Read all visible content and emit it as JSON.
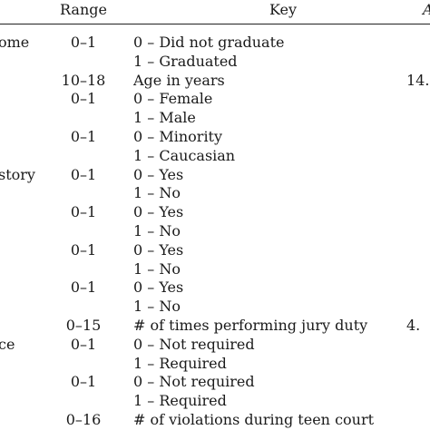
{
  "header": {
    "range": "Range",
    "key": "Key",
    "col4": "A"
  },
  "rows": [
    {
      "c0": "ome",
      "range": "0–1",
      "key": "0 – Did not graduate",
      "c3": ""
    },
    {
      "c0": "",
      "range": "",
      "key": "1 – Graduated",
      "c3": ""
    },
    {
      "c0": "",
      "range": "10–18",
      "key": "Age in years",
      "c3": "14."
    },
    {
      "c0": "",
      "range": "0–1",
      "key": "0 – Female",
      "c3": ""
    },
    {
      "c0": "",
      "range": "",
      "key": "1 – Male",
      "c3": ""
    },
    {
      "c0": "",
      "range": "0–1",
      "key": "0 – Minority",
      "c3": ""
    },
    {
      "c0": "",
      "range": "",
      "key": "1 – Caucasian",
      "c3": ""
    },
    {
      "c0": "story",
      "range": "0–1",
      "key": "0 – Yes",
      "c3": ""
    },
    {
      "c0": "",
      "range": "",
      "key": "1 – No",
      "c3": ""
    },
    {
      "c0": "",
      "range": "0–1",
      "key": "0 – Yes",
      "c3": ""
    },
    {
      "c0": "",
      "range": "",
      "key": "1 – No",
      "c3": ""
    },
    {
      "c0": "",
      "range": "0–1",
      "key": "0 – Yes",
      "c3": ""
    },
    {
      "c0": "",
      "range": "",
      "key": "1 – No",
      "c3": ""
    },
    {
      "c0": "",
      "range": "0–1",
      "key": "0 – Yes",
      "c3": ""
    },
    {
      "c0": "",
      "range": "",
      "key": "1 – No",
      "c3": ""
    },
    {
      "c0": "",
      "range": "0–15",
      "key": "# of times performing jury duty",
      "c3": "4."
    },
    {
      "c0": "ce",
      "range": "0–1",
      "key": "0 – Not required",
      "c3": ""
    },
    {
      "c0": "",
      "range": "",
      "key": "1 – Required",
      "c3": ""
    },
    {
      "c0": "",
      "range": "0–1",
      "key": "0 – Not required",
      "c3": ""
    },
    {
      "c0": "",
      "range": "",
      "key": "1 – Required",
      "c3": ""
    },
    {
      "c0": "",
      "range": "0–16",
      "key": "# of violations during teen court",
      "c3": ""
    }
  ]
}
